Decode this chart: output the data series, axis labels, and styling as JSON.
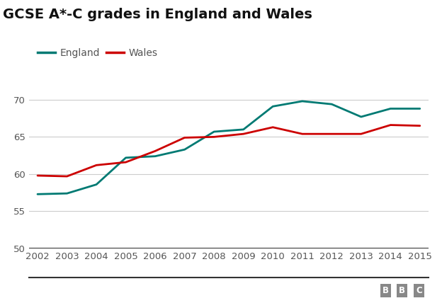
{
  "title": "GCSE A*-C grades in England and Wales",
  "years": [
    2002,
    2003,
    2004,
    2005,
    2006,
    2007,
    2008,
    2009,
    2010,
    2011,
    2012,
    2013,
    2014,
    2015
  ],
  "england": [
    57.3,
    57.4,
    58.6,
    62.2,
    62.4,
    63.3,
    65.7,
    66.0,
    69.1,
    69.8,
    69.4,
    67.7,
    68.8,
    68.8
  ],
  "wales": [
    59.8,
    59.7,
    61.2,
    61.6,
    63.1,
    64.9,
    65.0,
    65.4,
    66.3,
    65.4,
    65.4,
    65.4,
    66.6,
    66.5
  ],
  "england_color": "#007a73",
  "wales_color": "#cc0000",
  "background_color": "#ffffff",
  "grid_color": "#cccccc",
  "ylim": [
    50,
    72
  ],
  "yticks": [
    50,
    55,
    60,
    65,
    70
  ],
  "legend_labels": [
    "England",
    "Wales"
  ],
  "title_fontsize": 14,
  "tick_fontsize": 9.5,
  "legend_fontsize": 10,
  "line_width": 2.0,
  "bbc_box_color": "#888888",
  "bbc_text_color": "#ffffff"
}
